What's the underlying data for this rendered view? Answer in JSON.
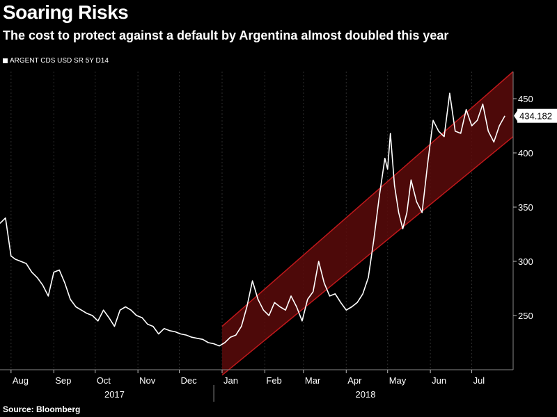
{
  "header": {
    "title": "Soaring Risks",
    "subtitle": "The cost to protect against a default by Argentina almost doubled this year"
  },
  "legend": {
    "label": "ARGENT CDS USD SR 5Y D14",
    "color": "#ffffff"
  },
  "footer": {
    "source": "Source: Bloomberg"
  },
  "last_value_label": "434.182",
  "colors": {
    "background": "#000000",
    "line": "#ffffff",
    "channel_fill": "#5a0a0a",
    "channel_edge": "#c0181b",
    "grid": "#2e2e2e"
  },
  "chart_data": {
    "type": "line",
    "title": "Soaring Risks",
    "subtitle": "The cost to protect against a default by Argentina almost doubled this year",
    "series": [
      {
        "name": "ARGENT CDS USD SR 5Y D14",
        "x": [
          "2017-07-24",
          "2017-07-28",
          "2017-08-01",
          "2017-08-04",
          "2017-08-08",
          "2017-08-12",
          "2017-08-16",
          "2017-08-20",
          "2017-08-24",
          "2017-08-28",
          "2017-09-01",
          "2017-09-05",
          "2017-09-09",
          "2017-09-13",
          "2017-09-17",
          "2017-09-21",
          "2017-09-25",
          "2017-09-29",
          "2017-10-03",
          "2017-10-07",
          "2017-10-11",
          "2017-10-15",
          "2017-10-19",
          "2017-10-23",
          "2017-10-27",
          "2017-10-31",
          "2017-11-04",
          "2017-11-08",
          "2017-11-12",
          "2017-11-16",
          "2017-11-20",
          "2017-11-24",
          "2017-11-28",
          "2017-12-02",
          "2017-12-06",
          "2017-12-10",
          "2017-12-14",
          "2017-12-18",
          "2017-12-22",
          "2017-12-26",
          "2017-12-30",
          "2018-01-03",
          "2018-01-07",
          "2018-01-11",
          "2018-01-15",
          "2018-01-19",
          "2018-01-23",
          "2018-01-27",
          "2018-01-31",
          "2018-02-04",
          "2018-02-08",
          "2018-02-12",
          "2018-02-16",
          "2018-02-20",
          "2018-02-24",
          "2018-02-28",
          "2018-03-04",
          "2018-03-08",
          "2018-03-12",
          "2018-03-16",
          "2018-03-20",
          "2018-03-24",
          "2018-03-28",
          "2018-04-01",
          "2018-04-05",
          "2018-04-09",
          "2018-04-13",
          "2018-04-17",
          "2018-04-21",
          "2018-04-25",
          "2018-04-29",
          "2018-05-01",
          "2018-05-03",
          "2018-05-06",
          "2018-05-09",
          "2018-05-12",
          "2018-05-15",
          "2018-05-18",
          "2018-05-22",
          "2018-05-26",
          "2018-05-30",
          "2018-06-03",
          "2018-06-07",
          "2018-06-11",
          "2018-06-15",
          "2018-06-19",
          "2018-06-23",
          "2018-06-27",
          "2018-07-01",
          "2018-07-05",
          "2018-07-09",
          "2018-07-13",
          "2018-07-17",
          "2018-07-21",
          "2018-07-25"
        ],
        "values": [
          335,
          340,
          305,
          302,
          300,
          298,
          290,
          285,
          278,
          268,
          290,
          292,
          280,
          265,
          258,
          255,
          252,
          250,
          245,
          255,
          248,
          240,
          255,
          258,
          255,
          250,
          248,
          242,
          240,
          233,
          238,
          236,
          235,
          233,
          232,
          230,
          229,
          228,
          225,
          224,
          222,
          225,
          230,
          232,
          240,
          258,
          282,
          265,
          255,
          250,
          262,
          258,
          255,
          268,
          258,
          245,
          265,
          272,
          300,
          280,
          268,
          270,
          262,
          255,
          258,
          262,
          270,
          285,
          320,
          360,
          395,
          385,
          418,
          370,
          345,
          330,
          345,
          375,
          355,
          345,
          390,
          430,
          420,
          415,
          455,
          420,
          418,
          440,
          425,
          430,
          445,
          420,
          410,
          425,
          434.182
        ]
      }
    ],
    "channel": {
      "upper": {
        "start": [
          "2018-01-01",
          240
        ],
        "end": [
          "2018-07-31",
          475
        ]
      },
      "lower": {
        "start": [
          "2018-01-01",
          195
        ],
        "end": [
          "2018-07-31",
          415
        ]
      }
    },
    "xlim": [
      "2017-07-24",
      "2018-07-31"
    ],
    "ylim": [
      200,
      475
    ],
    "yticks": [
      250,
      300,
      350,
      400,
      450
    ],
    "x_tick_labels": [
      {
        "label": "Aug",
        "date": "2017-08-01"
      },
      {
        "label": "Sep",
        "date": "2017-09-01"
      },
      {
        "label": "Oct",
        "date": "2017-10-01"
      },
      {
        "label": "Nov",
        "date": "2017-11-01"
      },
      {
        "label": "Dec",
        "date": "2017-12-01"
      },
      {
        "label": "Jan",
        "date": "2018-01-01"
      },
      {
        "label": "Feb",
        "date": "2018-02-01"
      },
      {
        "label": "Mar",
        "date": "2018-03-01"
      },
      {
        "label": "Apr",
        "date": "2018-04-01"
      },
      {
        "label": "May",
        "date": "2018-05-01"
      },
      {
        "label": "Jun",
        "date": "2018-06-01"
      },
      {
        "label": "Jul",
        "date": "2018-07-01"
      }
    ],
    "year_labels": [
      {
        "label": "2017",
        "date": "2017-10-15"
      },
      {
        "label": "2018",
        "date": "2018-04-15"
      }
    ],
    "year_divider": "2017-12-26",
    "y_axis_side": "right",
    "grid": "vertical dashed"
  }
}
